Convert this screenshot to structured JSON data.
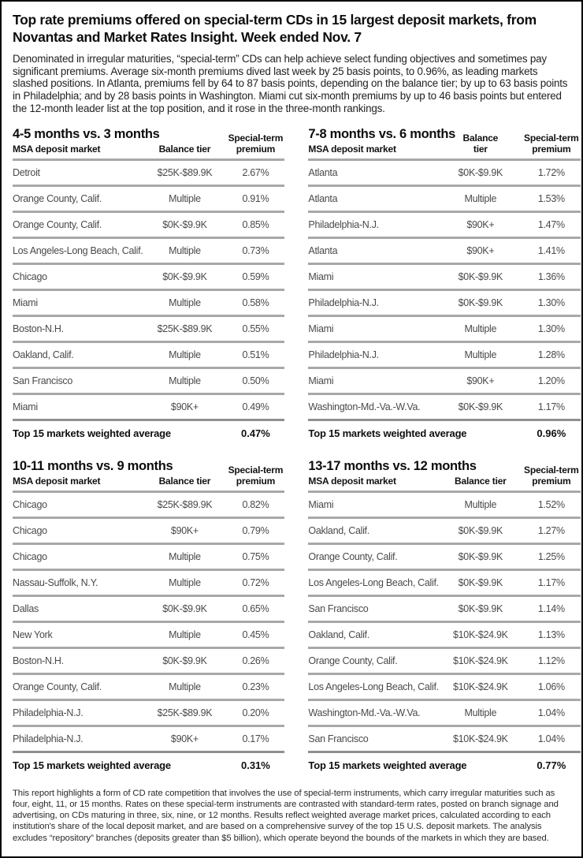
{
  "header": {
    "title": "Top rate premiums offered on special-term CDs in 15 largest deposit markets, from Novantas and Market Rates Insight. Week ended Nov. 7",
    "intro": "Denominated in irregular maturities, “special-term” CDs can help achieve select funding objectives and sometimes pay significant premiums. Average six-month premiums dived last week by 25 basis points, to 0.96%, as leading markets slashed positions. In Atlanta, premiums fell by 64 to 87 basis points, depending on the balance tier; by up to 63 basis points in Philadelphia; and by 28 basis points in Washington. Miami cut six-month premiums by up to 46 basis points but entered the 12-month leader list at the top position, and it rose in the three-month rankings."
  },
  "column_headers": {
    "market": "MSA deposit market",
    "tier": "Balance tier",
    "premium": "Special-term premium"
  },
  "total_label": "Top 15 markets weighted average",
  "colors": {
    "row_separator": "#a8a8a8",
    "page_border": "#000000",
    "text_primary": "#0d0d0d",
    "text_data": "#4a4a4a"
  },
  "tables": [
    {
      "title": "4-5 months vs. 3 months",
      "total_value": "0.47%",
      "rows": [
        {
          "market": "Detroit",
          "tier": "$25K-$89.9K",
          "premium": "2.67%"
        },
        {
          "market": "Orange County, Calif.",
          "tier": "Multiple",
          "premium": "0.91%"
        },
        {
          "market": "Orange County, Calif.",
          "tier": "$0K-$9.9K",
          "premium": "0.85%"
        },
        {
          "market": "Los Angeles-Long Beach, Calif.",
          "tier": "Multiple",
          "premium": "0.73%"
        },
        {
          "market": "Chicago",
          "tier": "$0K-$9.9K",
          "premium": "0.59%"
        },
        {
          "market": "Miami",
          "tier": "Multiple",
          "premium": "0.58%"
        },
        {
          "market": "Boston-N.H.",
          "tier": "$25K-$89.9K",
          "premium": "0.55%"
        },
        {
          "market": "Oakland, Calif.",
          "tier": "Multiple",
          "premium": "0.51%"
        },
        {
          "market": "San Francisco",
          "tier": "Multiple",
          "premium": "0.50%"
        },
        {
          "market": "Miami",
          "tier": "$90K+",
          "premium": "0.49%"
        }
      ]
    },
    {
      "title": "7-8 months vs. 6 months",
      "total_value": "0.96%",
      "rows": [
        {
          "market": "Atlanta",
          "tier": "$0K-$9.9K",
          "premium": "1.72%"
        },
        {
          "market": "Atlanta",
          "tier": "Multiple",
          "premium": "1.53%"
        },
        {
          "market": "Philadelphia-N.J.",
          "tier": "$90K+",
          "premium": "1.47%"
        },
        {
          "market": "Atlanta",
          "tier": "$90K+",
          "premium": "1.41%"
        },
        {
          "market": "Miami",
          "tier": "$0K-$9.9K",
          "premium": "1.36%"
        },
        {
          "market": "Philadelphia-N.J.",
          "tier": "$0K-$9.9K",
          "premium": "1.30%"
        },
        {
          "market": "Miami",
          "tier": "Multiple",
          "premium": "1.30%"
        },
        {
          "market": "Philadelphia-N.J.",
          "tier": "Multiple",
          "premium": "1.28%"
        },
        {
          "market": "Miami",
          "tier": "$90K+",
          "premium": "1.20%"
        },
        {
          "market": "Washington-Md.-Va.-W.Va.",
          "tier": "$0K-$9.9K",
          "premium": "1.17%"
        }
      ]
    },
    {
      "title": "10-11 months vs. 9 months",
      "total_value": "0.31%",
      "rows": [
        {
          "market": "Chicago",
          "tier": "$25K-$89.9K",
          "premium": "0.82%"
        },
        {
          "market": "Chicago",
          "tier": "$90K+",
          "premium": "0.79%"
        },
        {
          "market": "Chicago",
          "tier": "Multiple",
          "premium": "0.75%"
        },
        {
          "market": "Nassau-Suffolk, N.Y.",
          "tier": "Multiple",
          "premium": "0.72%"
        },
        {
          "market": "Dallas",
          "tier": "$0K-$9.9K",
          "premium": "0.65%"
        },
        {
          "market": "New York",
          "tier": "Multiple",
          "premium": "0.45%"
        },
        {
          "market": "Boston-N.H.",
          "tier": "$0K-$9.9K",
          "premium": "0.26%"
        },
        {
          "market": "Orange County, Calif.",
          "tier": "Multiple",
          "premium": "0.23%"
        },
        {
          "market": "Philadelphia-N.J.",
          "tier": "$25K-$89.9K",
          "premium": "0.20%"
        },
        {
          "market": "Philadelphia-N.J.",
          "tier": "$90K+",
          "premium": "0.17%"
        }
      ]
    },
    {
      "title": "13-17 months vs. 12 months",
      "total_value": "0.77%",
      "rows": [
        {
          "market": "Miami",
          "tier": "Multiple",
          "premium": "1.52%"
        },
        {
          "market": "Oakland, Calif.",
          "tier": "$0K-$9.9K",
          "premium": "1.27%"
        },
        {
          "market": "Orange County, Calif.",
          "tier": "$0K-$9.9K",
          "premium": "1.25%"
        },
        {
          "market": "Los Angeles-Long Beach, Calif.",
          "tier": "$0K-$9.9K",
          "premium": "1.17%"
        },
        {
          "market": "San Francisco",
          "tier": "$0K-$9.9K",
          "premium": "1.14%"
        },
        {
          "market": "Oakland, Calif.",
          "tier": "$10K-$24.9K",
          "premium": "1.13%"
        },
        {
          "market": "Orange County, Calif.",
          "tier": "$10K-$24.9K",
          "premium": "1.12%"
        },
        {
          "market": "Los Angeles-Long Beach, Calif.",
          "tier": "$10K-$24.9K",
          "premium": "1.06%"
        },
        {
          "market": "Washington-Md.-Va.-W.Va.",
          "tier": "Multiple",
          "premium": "1.04%"
        },
        {
          "market": "San Francisco",
          "tier": "$10K-$24.9K",
          "premium": "1.04%"
        }
      ]
    }
  ],
  "footnote": "This report highlights a form of CD rate competition that involves the use of special-term instruments, which carry irregular maturities such as four, eight, 11, or 15 months.  Rates on these special-term instruments are contrasted with standard-term rates, posted on branch signage and advertising, on CDs maturing in three, six, nine, or 12 months.  Results reflect weighted average market prices, calculated according to each institution's share of the local deposit market, and are based on a comprehensive survey of the top 15 U.S. deposit markets.  The analysis excludes “repository” branches (deposits greater than $5 billion), which operate beyond the bounds of the markets in which they are based."
}
